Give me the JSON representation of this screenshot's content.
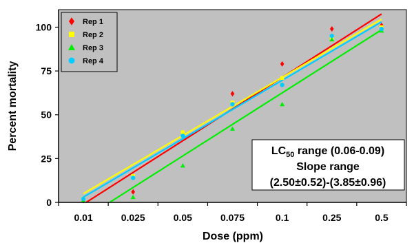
{
  "chart_data": {
    "type": "scatter",
    "title": "",
    "xlabel": "Dose (ppm)",
    "ylabel": "Percent mortality",
    "categories": [
      "0.01",
      "0.025",
      "0.05",
      "0.075",
      "0.1",
      "0.25",
      "0.5"
    ],
    "ylim": [
      0,
      110
    ],
    "yticks": [
      "0",
      "25",
      "50",
      "75",
      "100"
    ],
    "grid": false,
    "legend_position": "top-left",
    "series": [
      {
        "name": "Rep 1",
        "marker": "diamond",
        "color": "#ff0000",
        "values": [
          1,
          6,
          39,
          62,
          79,
          99,
          101
        ],
        "fit_line": [
          -1,
          107.5
        ]
      },
      {
        "name": "Rep 2",
        "marker": "square",
        "color": "#ffff00",
        "values": [
          2,
          15,
          40,
          57,
          71,
          94,
          100
        ],
        "fit_line": [
          5,
          104.5
        ]
      },
      {
        "name": "Rep 3",
        "marker": "triangle",
        "color": "#00ee00",
        "values": [
          1,
          3,
          21,
          42,
          56,
          93,
          98
        ],
        "fit_line": [
          -9.5,
          98.5
        ]
      },
      {
        "name": "Rep 4",
        "marker": "circle",
        "color": "#00ccff",
        "values": [
          2,
          14,
          38,
          56,
          67,
          95,
          99
        ],
        "fit_line": [
          3,
          103
        ]
      }
    ],
    "annotation": {
      "line1_prefix": "LC",
      "line1_sub": "50",
      "line1_suffix": " range (0.06-0.09)",
      "line2": "Slope range",
      "line3": "(2.50±0.52)-(3.85±0.96)"
    }
  }
}
